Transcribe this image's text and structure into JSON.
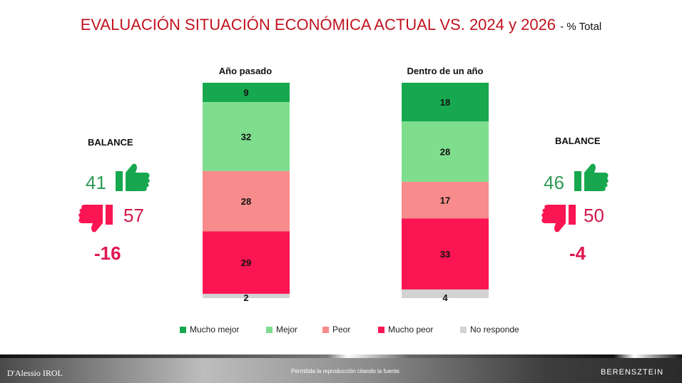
{
  "title": "EVALUACIÓN SITUACIÓN ECONÓMICA ACTUAL VS. 2024 y 2026",
  "subtitle": "- % Total",
  "chart_data": {
    "type": "bar",
    "stacked": true,
    "categories": [
      "Año pasado",
      "Dentro de un año"
    ],
    "series": [
      {
        "name": "Mucho mejor",
        "color": "#17a84f",
        "values": [
          9,
          18
        ]
      },
      {
        "name": "Mejor",
        "color": "#7ede8e",
        "values": [
          32,
          28
        ]
      },
      {
        "name": "Peor",
        "color": "#f88b8b",
        "values": [
          28,
          17
        ]
      },
      {
        "name": "Mucho peor",
        "color": "#fb1552",
        "values": [
          29,
          33
        ]
      },
      {
        "name": "No responde",
        "color": "#d3d3d3",
        "values": [
          2,
          4
        ]
      }
    ],
    "legend": "bottom"
  },
  "balance_left": {
    "label": "BALANCE",
    "positive": "41",
    "negative": "57",
    "net": "-16"
  },
  "balance_right": {
    "label": "BALANCE",
    "positive": "46",
    "negative": "50",
    "net": "-4"
  },
  "footer": {
    "left_logo": "D'Alessio IROL",
    "center": "Permitida la reproducción citando la fuente.",
    "right_logo": "BERENSZTEIN"
  }
}
